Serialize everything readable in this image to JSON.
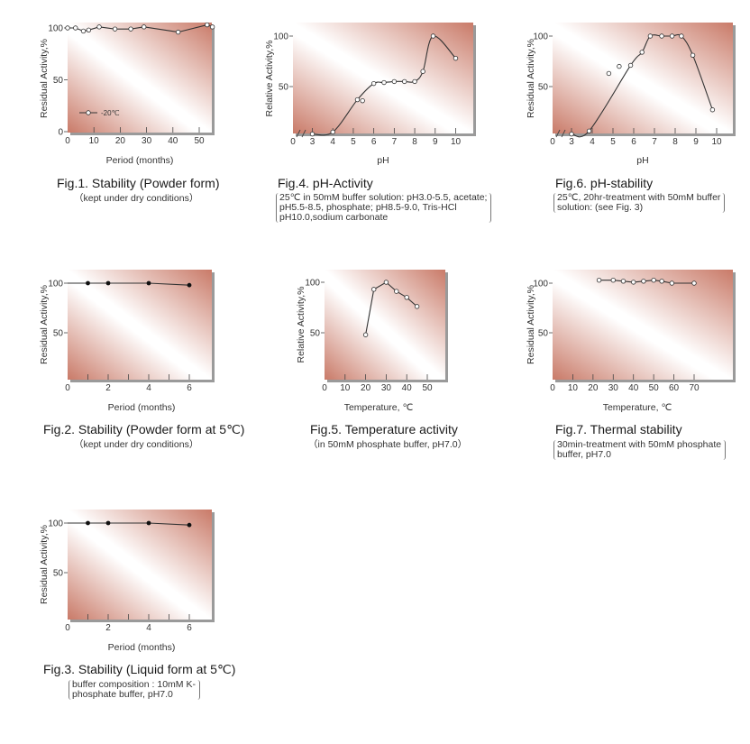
{
  "colors": {
    "plot_dark": "#c97a68",
    "plot_light": "#ffffff",
    "line": "#333333",
    "shadow": "#9a9a9a"
  },
  "chart_data": [
    {
      "id": "fig1",
      "type": "line",
      "title": "Fig.1. Stability (Powder form)",
      "note": "kept under dry conditions",
      "xlabel": "Period (months)",
      "ylabel": "Residual Activity,%",
      "xlim": [
        0,
        56
      ],
      "ylim": [
        0,
        105
      ],
      "xticks": [
        0,
        10,
        20,
        30,
        40,
        50
      ],
      "yticks": [
        0,
        50,
        100
      ],
      "legend": {
        "label": "-20℃",
        "position": "bottom-left"
      },
      "marker": "open-circle",
      "series": [
        {
          "name": "-20℃",
          "x": [
            0,
            3,
            6,
            8,
            12,
            18,
            24,
            29,
            42,
            53,
            55
          ],
          "y": [
            100,
            100,
            97,
            98,
            101,
            99,
            99,
            101,
            96,
            103,
            101
          ]
        }
      ]
    },
    {
      "id": "fig4",
      "type": "line",
      "title": "Fig.4. pH-Activity",
      "note_lines": [
        "25℃ in 50mM buffer solution: pH3.0-5.5, acetate;",
        "pH5.5-8.5, phosphate; pH8.5-9.0, Tris-HCl",
        "pH10.0,sodium carbonate"
      ],
      "xlabel": "pH",
      "ylabel": "Relative Activity,%",
      "xlim": [
        2,
        11
      ],
      "axis_break": true,
      "ylim": [
        0,
        110
      ],
      "xticks": [
        0,
        3,
        4,
        5,
        6,
        7,
        8,
        9,
        10
      ],
      "yticks": [
        50,
        100
      ],
      "marker": "open-circle",
      "series": [
        {
          "name": "activity",
          "x": [
            3,
            4,
            5.2,
            5.45,
            6,
            6.5,
            7,
            7.5,
            8,
            8.4,
            8.9,
            10
          ],
          "y": [
            3,
            5,
            37,
            36,
            53,
            54,
            55,
            55,
            55,
            65,
            100,
            78
          ]
        }
      ]
    },
    {
      "id": "fig6",
      "type": "line",
      "title": "Fig.6. pH-stability",
      "note_lines": [
        "25℃, 20hr-treatment with 50mM buffer",
        "solution: (see Fig. 3)"
      ],
      "xlabel": "pH",
      "ylabel": "Residual Activity,%",
      "xlim": [
        2,
        11
      ],
      "axis_break": true,
      "ylim": [
        0,
        110
      ],
      "xticks": [
        0,
        3,
        4,
        5,
        6,
        7,
        8,
        9,
        10
      ],
      "yticks": [
        50,
        100
      ],
      "marker": "open-circle",
      "series": [
        {
          "name": "stability",
          "x": [
            3,
            3.85,
            4.8,
            5.3,
            5.85,
            6.4,
            6.8,
            7.35,
            7.85,
            8.3,
            8.85,
            9.8
          ],
          "y": [
            3,
            6,
            63,
            70,
            71,
            84,
            100,
            100,
            100,
            100,
            81,
            27
          ]
        }
      ]
    },
    {
      "id": "fig2",
      "type": "line",
      "title": "Fig.2. Stability (Powder form at 5℃)",
      "note": "kept under dry conditions",
      "xlabel": "Period (months)",
      "ylabel": "Residual Activity,%",
      "xlim": [
        0,
        7
      ],
      "ylim": [
        0,
        110
      ],
      "xticks": [
        0,
        2,
        4,
        6
      ],
      "minor_xticks": [
        1,
        3,
        5
      ],
      "yticks": [
        50,
        100
      ],
      "marker": "filled-circle",
      "series": [
        {
          "name": "5℃ powder",
          "x": [
            0,
            1,
            2,
            4,
            6
          ],
          "y": [
            100,
            100,
            100,
            100,
            98
          ]
        }
      ]
    },
    {
      "id": "fig5",
      "type": "line",
      "title": "Fig.5. Temperature activity",
      "note": "in 50mM phosphate buffer, pH7.0",
      "xlabel": "Temperature, ℃",
      "ylabel": "Relative Activity,%",
      "xlim": [
        0,
        59
      ],
      "ylim": [
        0,
        110
      ],
      "xticks": [
        0,
        10,
        20,
        30,
        40,
        50
      ],
      "yticks": [
        50,
        100
      ],
      "marker": "open-circle",
      "series": [
        {
          "name": "activity",
          "x": [
            20,
            24,
            30,
            35,
            40,
            45
          ],
          "y": [
            48,
            93,
            100,
            91,
            85,
            76
          ]
        }
      ]
    },
    {
      "id": "fig7",
      "type": "line",
      "title": "Fig.7. Thermal stability",
      "note_lines": [
        "30min-treatment with 50mM phosphate",
        "buffer, pH7.0"
      ],
      "xlabel": "Temperature, ℃",
      "ylabel": "Residual Activity,%",
      "xlim": [
        0,
        89
      ],
      "ylim": [
        0,
        110
      ],
      "xticks": [
        0,
        10,
        20,
        30,
        40,
        50,
        60,
        70
      ],
      "yticks": [
        50,
        100
      ],
      "marker": "open-circle",
      "series": [
        {
          "name": "stability",
          "x": [
            23,
            30,
            35,
            40,
            45,
            50,
            54,
            59,
            70
          ],
          "y": [
            103,
            103,
            102,
            101,
            102,
            103,
            102,
            100,
            100
          ]
        }
      ]
    },
    {
      "id": "fig3",
      "type": "line",
      "title": "Fig.3. Stability (Liquid form at 5℃)",
      "note_lines": [
        "buffer composition : 10mM K-",
        "phosphate buffer, pH7.0"
      ],
      "xlabel": "Period (months)",
      "ylabel": "Residual Activity,%",
      "xlim": [
        0,
        7
      ],
      "ylim": [
        0,
        110
      ],
      "xticks": [
        0,
        2,
        4,
        6
      ],
      "minor_xticks": [
        1,
        3,
        5
      ],
      "yticks": [
        50,
        100
      ],
      "marker": "filled-circle",
      "series": [
        {
          "name": "5℃ liquid",
          "x": [
            0,
            1,
            2,
            4,
            6
          ],
          "y": [
            100,
            100,
            100,
            100,
            98
          ]
        }
      ]
    }
  ]
}
